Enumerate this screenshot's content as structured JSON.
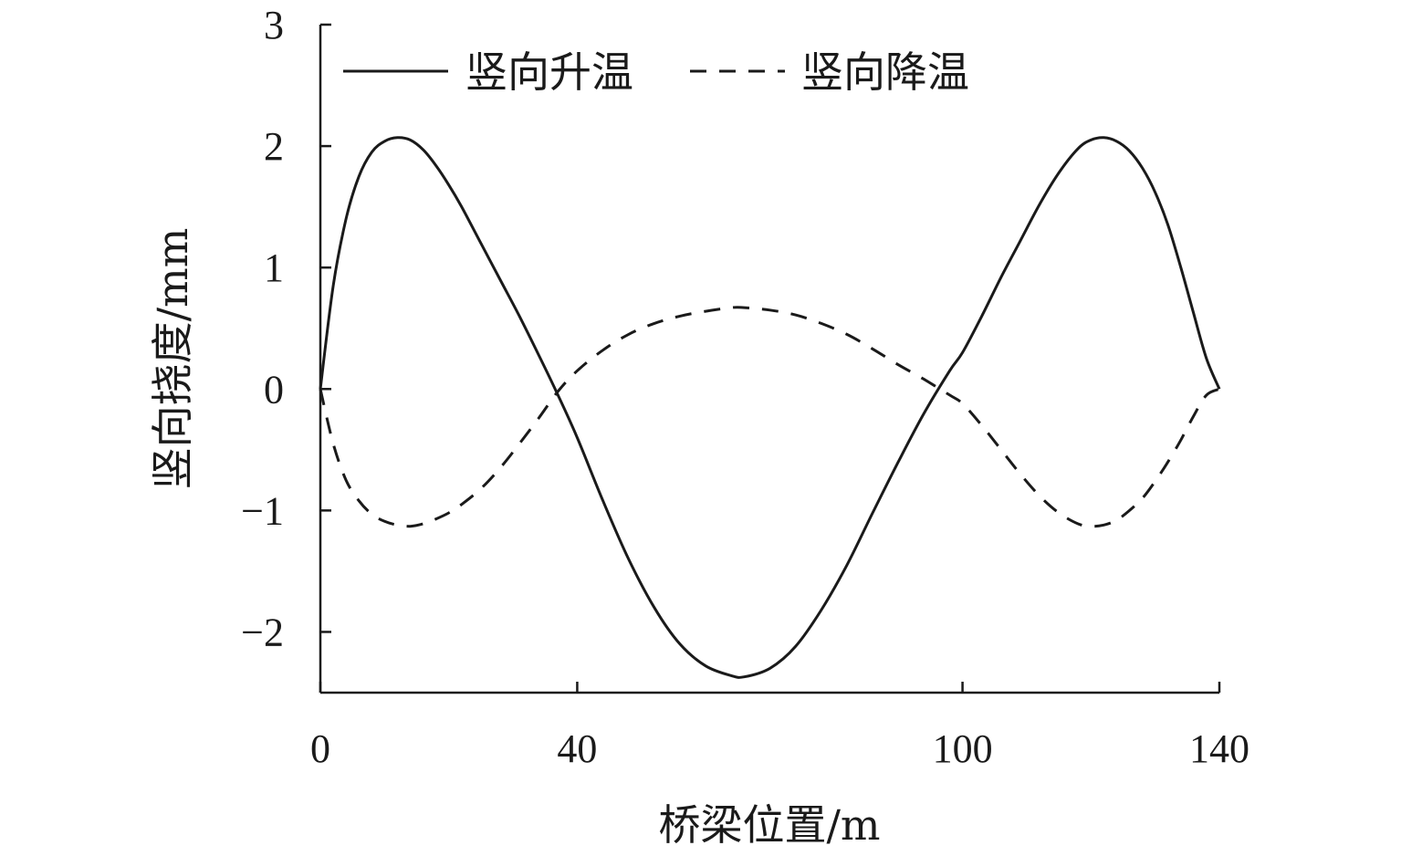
{
  "chart_data": {
    "type": "line",
    "xlabel": "桥梁位置/m",
    "ylabel": "竖向挠度/mm",
    "xlim": [
      0,
      140
    ],
    "ylim": [
      -2.5,
      3
    ],
    "x_ticks": [
      0,
      40,
      100,
      140
    ],
    "y_ticks": [
      -2,
      -1,
      0,
      1,
      2,
      3
    ],
    "y_tick_labels": [
      "−2",
      "−1",
      "0",
      "1",
      "2",
      "3"
    ],
    "grid": false,
    "legend_position": "top",
    "series": [
      {
        "name": "竖向升温",
        "style": "solid",
        "color": "#1a1a1a",
        "x": [
          0,
          2,
          4,
          6,
          8,
          10,
          12,
          14,
          16,
          18,
          20,
          22,
          25,
          28,
          31,
          34,
          37,
          40,
          44,
          48,
          52,
          56,
          60,
          64,
          66,
          70,
          74,
          78,
          82,
          86,
          90,
          94,
          98,
          100,
          103,
          106,
          109,
          112,
          115,
          118,
          120,
          122,
          124,
          126,
          128,
          130,
          132,
          134,
          136,
          138,
          140
        ],
        "y": [
          0,
          0.85,
          1.4,
          1.75,
          1.95,
          2.04,
          2.07,
          2.05,
          1.97,
          1.84,
          1.68,
          1.5,
          1.2,
          0.9,
          0.6,
          0.28,
          -0.05,
          -0.4,
          -0.92,
          -1.4,
          -1.8,
          -2.1,
          -2.28,
          -2.36,
          -2.37,
          -2.3,
          -2.12,
          -1.82,
          -1.45,
          -1.02,
          -0.6,
          -0.2,
          0.15,
          0.3,
          0.6,
          0.92,
          1.22,
          1.52,
          1.78,
          1.98,
          2.05,
          2.07,
          2.04,
          1.96,
          1.82,
          1.62,
          1.35,
          1.0,
          0.62,
          0.25,
          0
        ]
      },
      {
        "name": "竖向降温",
        "style": "dashed",
        "color": "#1a1a1a",
        "x": [
          0,
          2,
          4,
          6,
          8,
          10,
          12,
          14,
          16,
          18,
          20,
          22,
          25,
          28,
          31,
          34,
          37,
          40,
          44,
          48,
          52,
          56,
          60,
          64,
          66,
          70,
          74,
          78,
          82,
          86,
          90,
          94,
          98,
          100,
          103,
          106,
          109,
          112,
          115,
          118,
          120,
          122,
          124,
          126,
          128,
          130,
          132,
          134,
          136,
          138,
          140
        ],
        "y": [
          0,
          -0.45,
          -0.75,
          -0.92,
          -1.03,
          -1.09,
          -1.12,
          -1.13,
          -1.11,
          -1.07,
          -1.02,
          -0.95,
          -0.82,
          -0.65,
          -0.45,
          -0.24,
          -0.02,
          0.15,
          0.32,
          0.45,
          0.54,
          0.6,
          0.64,
          0.67,
          0.67,
          0.65,
          0.61,
          0.54,
          0.45,
          0.33,
          0.2,
          0.08,
          -0.05,
          -0.12,
          -0.3,
          -0.5,
          -0.7,
          -0.88,
          -1.02,
          -1.11,
          -1.13,
          -1.12,
          -1.08,
          -1.0,
          -0.9,
          -0.76,
          -0.6,
          -0.42,
          -0.22,
          -0.05,
          0
        ]
      }
    ]
  }
}
